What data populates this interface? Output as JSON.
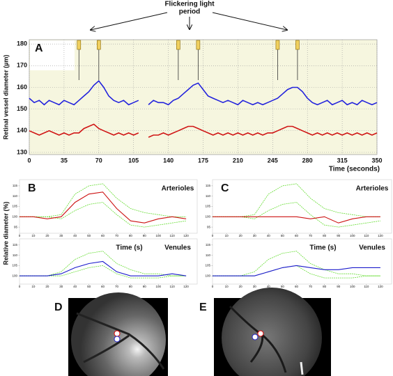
{
  "chart_data": [
    {
      "type": "line",
      "panel": "A",
      "annotation": [
        "Flickering light",
        "period"
      ],
      "xlabel": "Time (seconds)",
      "ylabel": "Retinal vessel diameter (µm)",
      "xlim": [
        0,
        350
      ],
      "xticks": [
        0,
        35,
        70,
        105,
        140,
        175,
        210,
        245,
        280,
        315,
        350
      ],
      "ylim": [
        129,
        182
      ],
      "yticks": [
        130,
        140,
        150,
        160,
        170,
        180
      ],
      "grid": true,
      "flicker_markers": [
        50,
        70,
        150,
        170,
        250,
        270
      ],
      "x": [
        0,
        5,
        10,
        15,
        20,
        25,
        30,
        35,
        40,
        45,
        50,
        55,
        60,
        65,
        70,
        75,
        80,
        85,
        90,
        95,
        100,
        105,
        110,
        115,
        120,
        125,
        130,
        135,
        140,
        145,
        150,
        155,
        160,
        165,
        170,
        175,
        180,
        185,
        190,
        195,
        200,
        205,
        210,
        215,
        220,
        225,
        230,
        235,
        240,
        245,
        250,
        255,
        260,
        265,
        270,
        275,
        280,
        285,
        290,
        295,
        300,
        305,
        310,
        315,
        320,
        325,
        330,
        335,
        340,
        345,
        350
      ],
      "series": [
        {
          "color": "#2222dd",
          "values": [
            155,
            153,
            154,
            152,
            154,
            153,
            152,
            154,
            153,
            152,
            154,
            156,
            158,
            161,
            163,
            160,
            156,
            154,
            153,
            154,
            152,
            153,
            154,
            null,
            152,
            154,
            153,
            153,
            152,
            154,
            155,
            157,
            159,
            161,
            162,
            159,
            156,
            155,
            154,
            153,
            154,
            153,
            152,
            154,
            153,
            152,
            153,
            152,
            153,
            154,
            155,
            157,
            159,
            160,
            160,
            158,
            155,
            153,
            152,
            153,
            154,
            152,
            153,
            154,
            152,
            153,
            152,
            154,
            153,
            152,
            153
          ]
        },
        {
          "color": "#d01515",
          "values": [
            140,
            139,
            138,
            139,
            140,
            139,
            138,
            139,
            138,
            139,
            139,
            141,
            142,
            143,
            141,
            140,
            139,
            138,
            139,
            138,
            139,
            138,
            139,
            null,
            137,
            138,
            138,
            139,
            138,
            139,
            140,
            141,
            142,
            142,
            141,
            140,
            139,
            138,
            139,
            138,
            139,
            138,
            139,
            138,
            139,
            138,
            139,
            138,
            139,
            139,
            140,
            141,
            142,
            142,
            141,
            140,
            139,
            138,
            139,
            138,
            139,
            138,
            139,
            138,
            139,
            138,
            139,
            138,
            139,
            138,
            139
          ]
        }
      ]
    },
    {
      "type": "line",
      "panel": "B",
      "title": "Arterioles",
      "ylabel": "Relative diameter (%)",
      "xlim": [
        0,
        128
      ],
      "xticks": [
        0,
        10,
        20,
        30,
        40,
        50,
        60,
        70,
        80,
        90,
        100,
        110,
        120
      ],
      "ylim": [
        92,
        118
      ],
      "yticks": [
        95,
        100,
        105,
        110,
        115
      ],
      "x": [
        0,
        10,
        20,
        30,
        40,
        50,
        60,
        70,
        80,
        90,
        100,
        110,
        120
      ],
      "series": [
        {
          "color": "#66dd33",
          "style": "dashed",
          "values": [
            100,
            100,
            100,
            101,
            111,
            115,
            116,
            109,
            104,
            102,
            101,
            100,
            100
          ]
        },
        {
          "color": "#66dd33",
          "style": "dashed",
          "values": [
            100,
            100,
            100,
            99,
            103,
            106,
            107,
            101,
            96,
            95,
            96,
            97,
            98
          ]
        },
        {
          "color": "#cc1111",
          "values": [
            100,
            100,
            99,
            100,
            107,
            111,
            112,
            104,
            98,
            97,
            99,
            100,
            99
          ]
        }
      ]
    },
    {
      "type": "line",
      "title": "Venules",
      "xlabel": "Time (s)",
      "xlim": [
        0,
        128
      ],
      "xticks": [
        0,
        10,
        20,
        30,
        40,
        50,
        60,
        70,
        80,
        90,
        100,
        110,
        120
      ],
      "ylim": [
        96,
        118
      ],
      "yticks": [
        100,
        105,
        110,
        115
      ],
      "x": [
        0,
        10,
        20,
        30,
        40,
        50,
        60,
        70,
        80,
        90,
        100,
        110,
        120
      ],
      "series": [
        {
          "color": "#66dd33",
          "style": "dashed",
          "values": [
            100,
            100,
            100,
            102,
            108,
            111,
            112,
            106,
            103,
            101,
            101,
            100,
            100
          ]
        },
        {
          "color": "#66dd33",
          "style": "dashed",
          "values": [
            100,
            100,
            100,
            100,
            102,
            104,
            105,
            101,
            99,
            99,
            99,
            100,
            100
          ]
        },
        {
          "color": "#1a1acc",
          "values": [
            100,
            100,
            100,
            101,
            104,
            106,
            107,
            102,
            100,
            100,
            100,
            101,
            100
          ]
        }
      ]
    },
    {
      "type": "line",
      "panel": "C",
      "title": "Arterioles",
      "xlim": [
        0,
        128
      ],
      "xticks": [
        0,
        10,
        20,
        30,
        40,
        50,
        60,
        70,
        80,
        90,
        100,
        110,
        120
      ],
      "ylim": [
        92,
        118
      ],
      "yticks": [
        95,
        100,
        105,
        110,
        115
      ],
      "x": [
        0,
        10,
        20,
        30,
        40,
        50,
        60,
        70,
        80,
        90,
        100,
        110,
        120
      ],
      "series": [
        {
          "color": "#66dd33",
          "style": "dashed",
          "values": [
            100,
            100,
            100,
            101,
            111,
            115,
            116,
            109,
            104,
            102,
            101,
            100,
            100
          ]
        },
        {
          "color": "#66dd33",
          "style": "dashed",
          "values": [
            100,
            100,
            100,
            99,
            103,
            106,
            107,
            101,
            96,
            95,
            96,
            97,
            98
          ]
        },
        {
          "color": "#cc1111",
          "values": [
            100,
            100,
            100,
            100,
            100,
            100,
            100,
            99,
            100,
            97,
            99,
            100,
            100
          ]
        }
      ]
    },
    {
      "type": "line",
      "title": "Venules",
      "xlabel": "Time (s)",
      "xlim": [
        0,
        128
      ],
      "xticks": [
        0,
        10,
        20,
        30,
        40,
        50,
        60,
        70,
        80,
        90,
        100,
        110,
        120
      ],
      "ylim": [
        96,
        118
      ],
      "yticks": [
        100,
        105,
        110,
        115
      ],
      "x": [
        0,
        10,
        20,
        30,
        40,
        50,
        60,
        70,
        80,
        90,
        100,
        110,
        120
      ],
      "series": [
        {
          "color": "#66dd33",
          "style": "dashed",
          "values": [
            100,
            100,
            100,
            102,
            108,
            111,
            112,
            106,
            103,
            101,
            101,
            100,
            100
          ]
        },
        {
          "color": "#66dd33",
          "style": "dashed",
          "values": [
            100,
            100,
            100,
            100,
            102,
            104,
            105,
            101,
            99,
            99,
            99,
            100,
            100
          ]
        },
        {
          "color": "#1a1acc",
          "values": [
            100,
            100,
            100,
            100,
            102,
            104,
            105,
            104,
            103,
            103,
            104,
            104,
            104
          ]
        }
      ]
    }
  ],
  "images": [
    {
      "label": "D"
    },
    {
      "label": "E"
    }
  ]
}
